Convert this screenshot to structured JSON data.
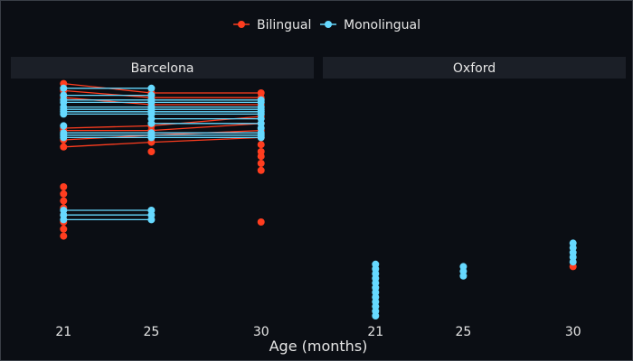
{
  "chart_data": {
    "type": "line",
    "xlabel": "Age (months)",
    "x_ticks": [
      21,
      25,
      30
    ],
    "xlim": [
      18.6,
      32.4
    ],
    "ylim": [
      0,
      100
    ],
    "legend": {
      "placement": "top",
      "entries": [
        "Bilingual",
        "Monolingual"
      ]
    },
    "colors": {
      "Bilingual": "#ff3d1f",
      "Monolingual": "#66d9ff"
    },
    "panels": [
      {
        "name": "Barcelona",
        "trajectories": [
          {
            "group": "Bilingual",
            "points": [
              [
                21,
                99
              ],
              [
                25,
                95
              ],
              [
                30,
                95
              ]
            ]
          },
          {
            "group": "Bilingual",
            "points": [
              [
                21,
                96
              ],
              [
                25,
                93
              ],
              [
                30,
                93
              ]
            ]
          },
          {
            "group": "Bilingual",
            "points": [
              [
                21,
                93
              ],
              [
                25,
                90
              ],
              [
                30,
                90
              ]
            ]
          },
          {
            "group": "Bilingual",
            "points": [
              [
                21,
                80
              ],
              [
                25,
                81
              ],
              [
                30,
                85
              ]
            ]
          },
          {
            "group": "Bilingual",
            "points": [
              [
                21,
                79
              ],
              [
                25,
                79
              ],
              [
                30,
                82
              ]
            ]
          },
          {
            "group": "Bilingual",
            "points": [
              [
                21,
                75
              ],
              [
                25,
                77
              ],
              [
                30,
                79
              ]
            ]
          },
          {
            "group": "Bilingual",
            "points": [
              [
                21,
                72
              ],
              [
                25,
                74
              ],
              [
                30,
                76
              ]
            ]
          },
          {
            "group": "Bilingual",
            "points": [
              [
                25,
                70
              ]
            ]
          },
          {
            "group": "Bilingual",
            "points": [
              [
                30,
                73
              ]
            ]
          },
          {
            "group": "Bilingual",
            "points": [
              [
                30,
                70
              ]
            ]
          },
          {
            "group": "Bilingual",
            "points": [
              [
                30,
                68
              ]
            ]
          },
          {
            "group": "Bilingual",
            "points": [
              [
                30,
                65
              ]
            ]
          },
          {
            "group": "Bilingual",
            "points": [
              [
                30,
                62
              ]
            ]
          },
          {
            "group": "Bilingual",
            "points": [
              [
                30,
                40
              ]
            ]
          },
          {
            "group": "Bilingual",
            "points": [
              [
                21,
                55
              ]
            ]
          },
          {
            "group": "Bilingual",
            "points": [
              [
                21,
                52
              ]
            ]
          },
          {
            "group": "Bilingual",
            "points": [
              [
                21,
                49
              ]
            ]
          },
          {
            "group": "Bilingual",
            "points": [
              [
                21,
                46
              ]
            ]
          },
          {
            "group": "Bilingual",
            "points": [
              [
                21,
                43
              ]
            ]
          },
          {
            "group": "Bilingual",
            "points": [
              [
                21,
                40
              ]
            ]
          },
          {
            "group": "Bilingual",
            "points": [
              [
                21,
                37
              ]
            ]
          },
          {
            "group": "Bilingual",
            "points": [
              [
                21,
                34
              ]
            ]
          },
          {
            "group": "Monolingual",
            "points": [
              [
                21,
                97
              ],
              [
                25,
                97
              ]
            ]
          },
          {
            "group": "Monolingual",
            "points": [
              [
                21,
                94
              ],
              [
                25,
                94
              ]
            ]
          },
          {
            "group": "Monolingual",
            "points": [
              [
                21,
                92
              ],
              [
                25,
                92
              ],
              [
                30,
                92
              ]
            ]
          },
          {
            "group": "Monolingual",
            "points": [
              [
                21,
                91
              ],
              [
                25,
                91
              ],
              [
                30,
                91
              ]
            ]
          },
          {
            "group": "Monolingual",
            "points": [
              [
                21,
                89
              ],
              [
                25,
                89
              ],
              [
                30,
                89
              ]
            ]
          },
          {
            "group": "Monolingual",
            "points": [
              [
                21,
                88
              ],
              [
                25,
                88
              ],
              [
                30,
                88
              ]
            ]
          },
          {
            "group": "Monolingual",
            "points": [
              [
                21,
                87
              ],
              [
                25,
                87
              ],
              [
                30,
                87
              ]
            ]
          },
          {
            "group": "Monolingual",
            "points": [
              [
                21,
                86
              ],
              [
                25,
                86
              ],
              [
                30,
                86
              ]
            ]
          },
          {
            "group": "Monolingual",
            "points": [
              [
                25,
                84
              ],
              [
                30,
                84
              ]
            ]
          },
          {
            "group": "Monolingual",
            "points": [
              [
                25,
                82
              ],
              [
                30,
                82
              ]
            ]
          },
          {
            "group": "Monolingual",
            "points": [
              [
                21,
                78
              ],
              [
                25,
                78
              ],
              [
                30,
                78
              ]
            ]
          },
          {
            "group": "Monolingual",
            "points": [
              [
                21,
                77
              ],
              [
                25,
                77
              ],
              [
                30,
                77
              ]
            ]
          },
          {
            "group": "Monolingual",
            "points": [
              [
                21,
                76
              ],
              [
                25,
                76
              ],
              [
                30,
                76
              ]
            ]
          },
          {
            "group": "Monolingual",
            "points": [
              [
                21,
                81
              ]
            ]
          },
          {
            "group": "Monolingual",
            "points": [
              [
                30,
                80
              ]
            ]
          },
          {
            "group": "Monolingual",
            "points": [
              [
                21,
                45
              ],
              [
                25,
                45
              ]
            ]
          },
          {
            "group": "Monolingual",
            "points": [
              [
                21,
                43
              ],
              [
                25,
                43
              ]
            ]
          },
          {
            "group": "Monolingual",
            "points": [
              [
                21,
                41
              ],
              [
                25,
                41
              ]
            ]
          }
        ]
      },
      {
        "name": "Oxford",
        "trajectories": [
          {
            "group": "Bilingual",
            "points": [
              [
                30,
                21
              ]
            ]
          },
          {
            "group": "Monolingual",
            "points": [
              [
                21,
                0
              ]
            ]
          },
          {
            "group": "Monolingual",
            "points": [
              [
                21,
                2
              ]
            ]
          },
          {
            "group": "Monolingual",
            "points": [
              [
                21,
                4
              ]
            ]
          },
          {
            "group": "Monolingual",
            "points": [
              [
                21,
                6
              ]
            ]
          },
          {
            "group": "Monolingual",
            "points": [
              [
                21,
                8
              ]
            ]
          },
          {
            "group": "Monolingual",
            "points": [
              [
                21,
                10
              ]
            ]
          },
          {
            "group": "Monolingual",
            "points": [
              [
                21,
                12
              ]
            ]
          },
          {
            "group": "Monolingual",
            "points": [
              [
                21,
                14
              ]
            ]
          },
          {
            "group": "Monolingual",
            "points": [
              [
                21,
                16
              ]
            ]
          },
          {
            "group": "Monolingual",
            "points": [
              [
                21,
                18
              ]
            ]
          },
          {
            "group": "Monolingual",
            "points": [
              [
                21,
                20
              ]
            ]
          },
          {
            "group": "Monolingual",
            "points": [
              [
                21,
                22
              ]
            ]
          },
          {
            "group": "Monolingual",
            "points": [
              [
                25,
                17
              ]
            ]
          },
          {
            "group": "Monolingual",
            "points": [
              [
                25,
                19
              ]
            ]
          },
          {
            "group": "Monolingual",
            "points": [
              [
                25,
                21
              ]
            ]
          },
          {
            "group": "Monolingual",
            "points": [
              [
                30,
                23
              ]
            ]
          },
          {
            "group": "Monolingual",
            "points": [
              [
                30,
                25
              ]
            ]
          },
          {
            "group": "Monolingual",
            "points": [
              [
                30,
                27
              ]
            ]
          },
          {
            "group": "Monolingual",
            "points": [
              [
                30,
                29
              ]
            ]
          },
          {
            "group": "Monolingual",
            "points": [
              [
                30,
                31
              ]
            ]
          }
        ]
      }
    ]
  }
}
